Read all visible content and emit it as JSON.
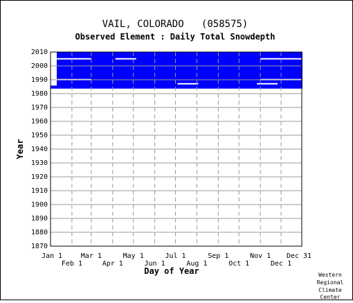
{
  "chart_data": {
    "type": "heatmap",
    "title": "VAIL, COLORADO   (058575)",
    "subtitle": "Observed Element : Daily Total Snowdepth",
    "xlabel": "Day of Year",
    "ylabel": "Year",
    "credit": [
      "Western",
      "Regional",
      "Climate",
      "Center"
    ],
    "colors": {
      "data": "#0000ff",
      "grid": "#9a9a9a",
      "axis": "#000000",
      "background": "#ffffff"
    },
    "ylim": [
      1870,
      2010
    ],
    "yticks": [
      2010,
      2000,
      1990,
      1980,
      1970,
      1960,
      1950,
      1940,
      1930,
      1920,
      1910,
      1900,
      1890,
      1880,
      1870
    ],
    "xlim": [
      "Jan 1",
      "Dec 31"
    ],
    "xticks_top_row": [
      {
        "label": "Jan 1",
        "day": 1
      },
      {
        "label": "Mar 1",
        "day": 60
      },
      {
        "label": "May 1",
        "day": 121
      },
      {
        "label": "Jul 1",
        "day": 182
      },
      {
        "label": "Sep 1",
        "day": 244
      },
      {
        "label": "Nov 1",
        "day": 305
      },
      {
        "label": "Dec 31",
        "day": 365
      }
    ],
    "xticks_bottom_row": [
      {
        "label": "Feb 1",
        "day": 32
      },
      {
        "label": "Apr 1",
        "day": 91
      },
      {
        "label": "Jun 1",
        "day": 152
      },
      {
        "label": "Aug 1",
        "day": 213
      },
      {
        "label": "Oct 1",
        "day": 274
      },
      {
        "label": "Dec 1",
        "day": 335
      }
    ],
    "grid": true,
    "data_coverage": [
      {
        "year_start": 1984,
        "year_end": 2009,
        "day_start": 10,
        "day_end": 365
      },
      {
        "year_start": 1983.6,
        "year_end": 1984.8,
        "day_start": 1,
        "day_end": 365
      }
    ],
    "gaps": [
      {
        "year": 2005,
        "day_start": 1,
        "day_end": 60
      },
      {
        "year": 2005,
        "day_start": 95,
        "day_end": 125
      },
      {
        "year": 2005,
        "day_start": 305,
        "day_end": 365
      },
      {
        "year": 1990,
        "day_start": 1,
        "day_end": 60
      },
      {
        "year": 1990,
        "day_start": 305,
        "day_end": 365
      },
      {
        "year": 1987,
        "day_start": 185,
        "day_end": 215
      },
      {
        "year": 1987,
        "day_start": 300,
        "day_end": 330
      }
    ]
  }
}
